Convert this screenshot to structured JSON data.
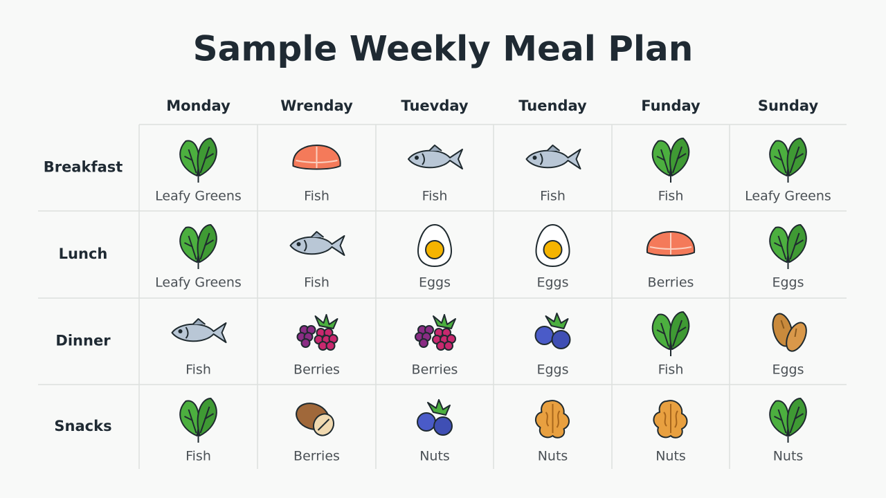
{
  "title": "Sample Weekly Meal Plan",
  "table": {
    "columns": [
      "Monday",
      "Wrenday",
      "Tuevday",
      "Tuenday",
      "Funday",
      "Sunday"
    ],
    "rows": [
      {
        "label": "Breakfast",
        "cells": [
          "Leafy Greens",
          "Fish",
          "Fish",
          "Fish",
          "Fish",
          "Leafy Greens"
        ]
      },
      {
        "label": "Lunch",
        "cells": [
          "Leafy Greens",
          "Fish",
          "Eggs",
          "Eggs",
          "Berries",
          "Eggs"
        ]
      },
      {
        "label": "Dinner",
        "cells": [
          "Fish",
          "Berries",
          "Berries",
          "Eggs",
          "Fish",
          "Eggs"
        ]
      },
      {
        "label": "Snacks",
        "cells": [
          "Fish",
          "Berries",
          "Nuts",
          "Nuts",
          "Nuts",
          "Nuts"
        ]
      }
    ]
  }
}
